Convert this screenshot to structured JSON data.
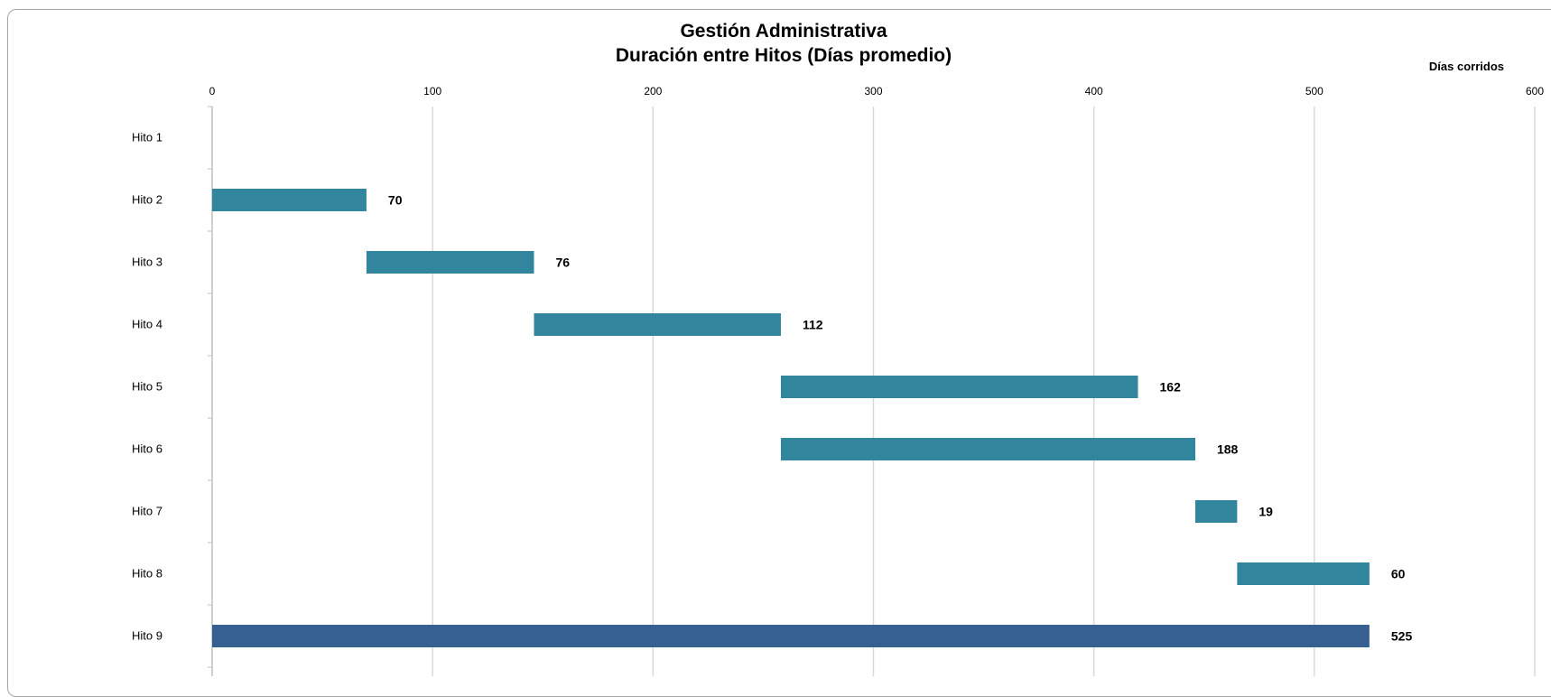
{
  "chart_data": {
    "type": "bar",
    "orientation": "horizontal",
    "title": "Gestión Administrativa",
    "subtitle": "Duración entre Hitos (Días promedio)",
    "xlabel": "Días corridos",
    "xlim": [
      0,
      600
    ],
    "xticks": [
      0,
      100,
      200,
      300,
      400,
      500,
      600
    ],
    "grid": true,
    "categories": [
      "Hito 1",
      "Hito 2",
      "Hito 3",
      "Hito 4",
      "Hito 5",
      "Hito 6",
      "Hito 7",
      "Hito 8",
      "Hito 9"
    ],
    "start": [
      0,
      0,
      70,
      146,
      258,
      258,
      446,
      465,
      0
    ],
    "values": [
      null,
      70,
      76,
      112,
      162,
      188,
      19,
      60,
      525
    ],
    "colors": {
      "segment": "#31859c",
      "total": "#376092",
      "grid": "#d9d9d9",
      "axis": "#bfbfbf"
    }
  }
}
